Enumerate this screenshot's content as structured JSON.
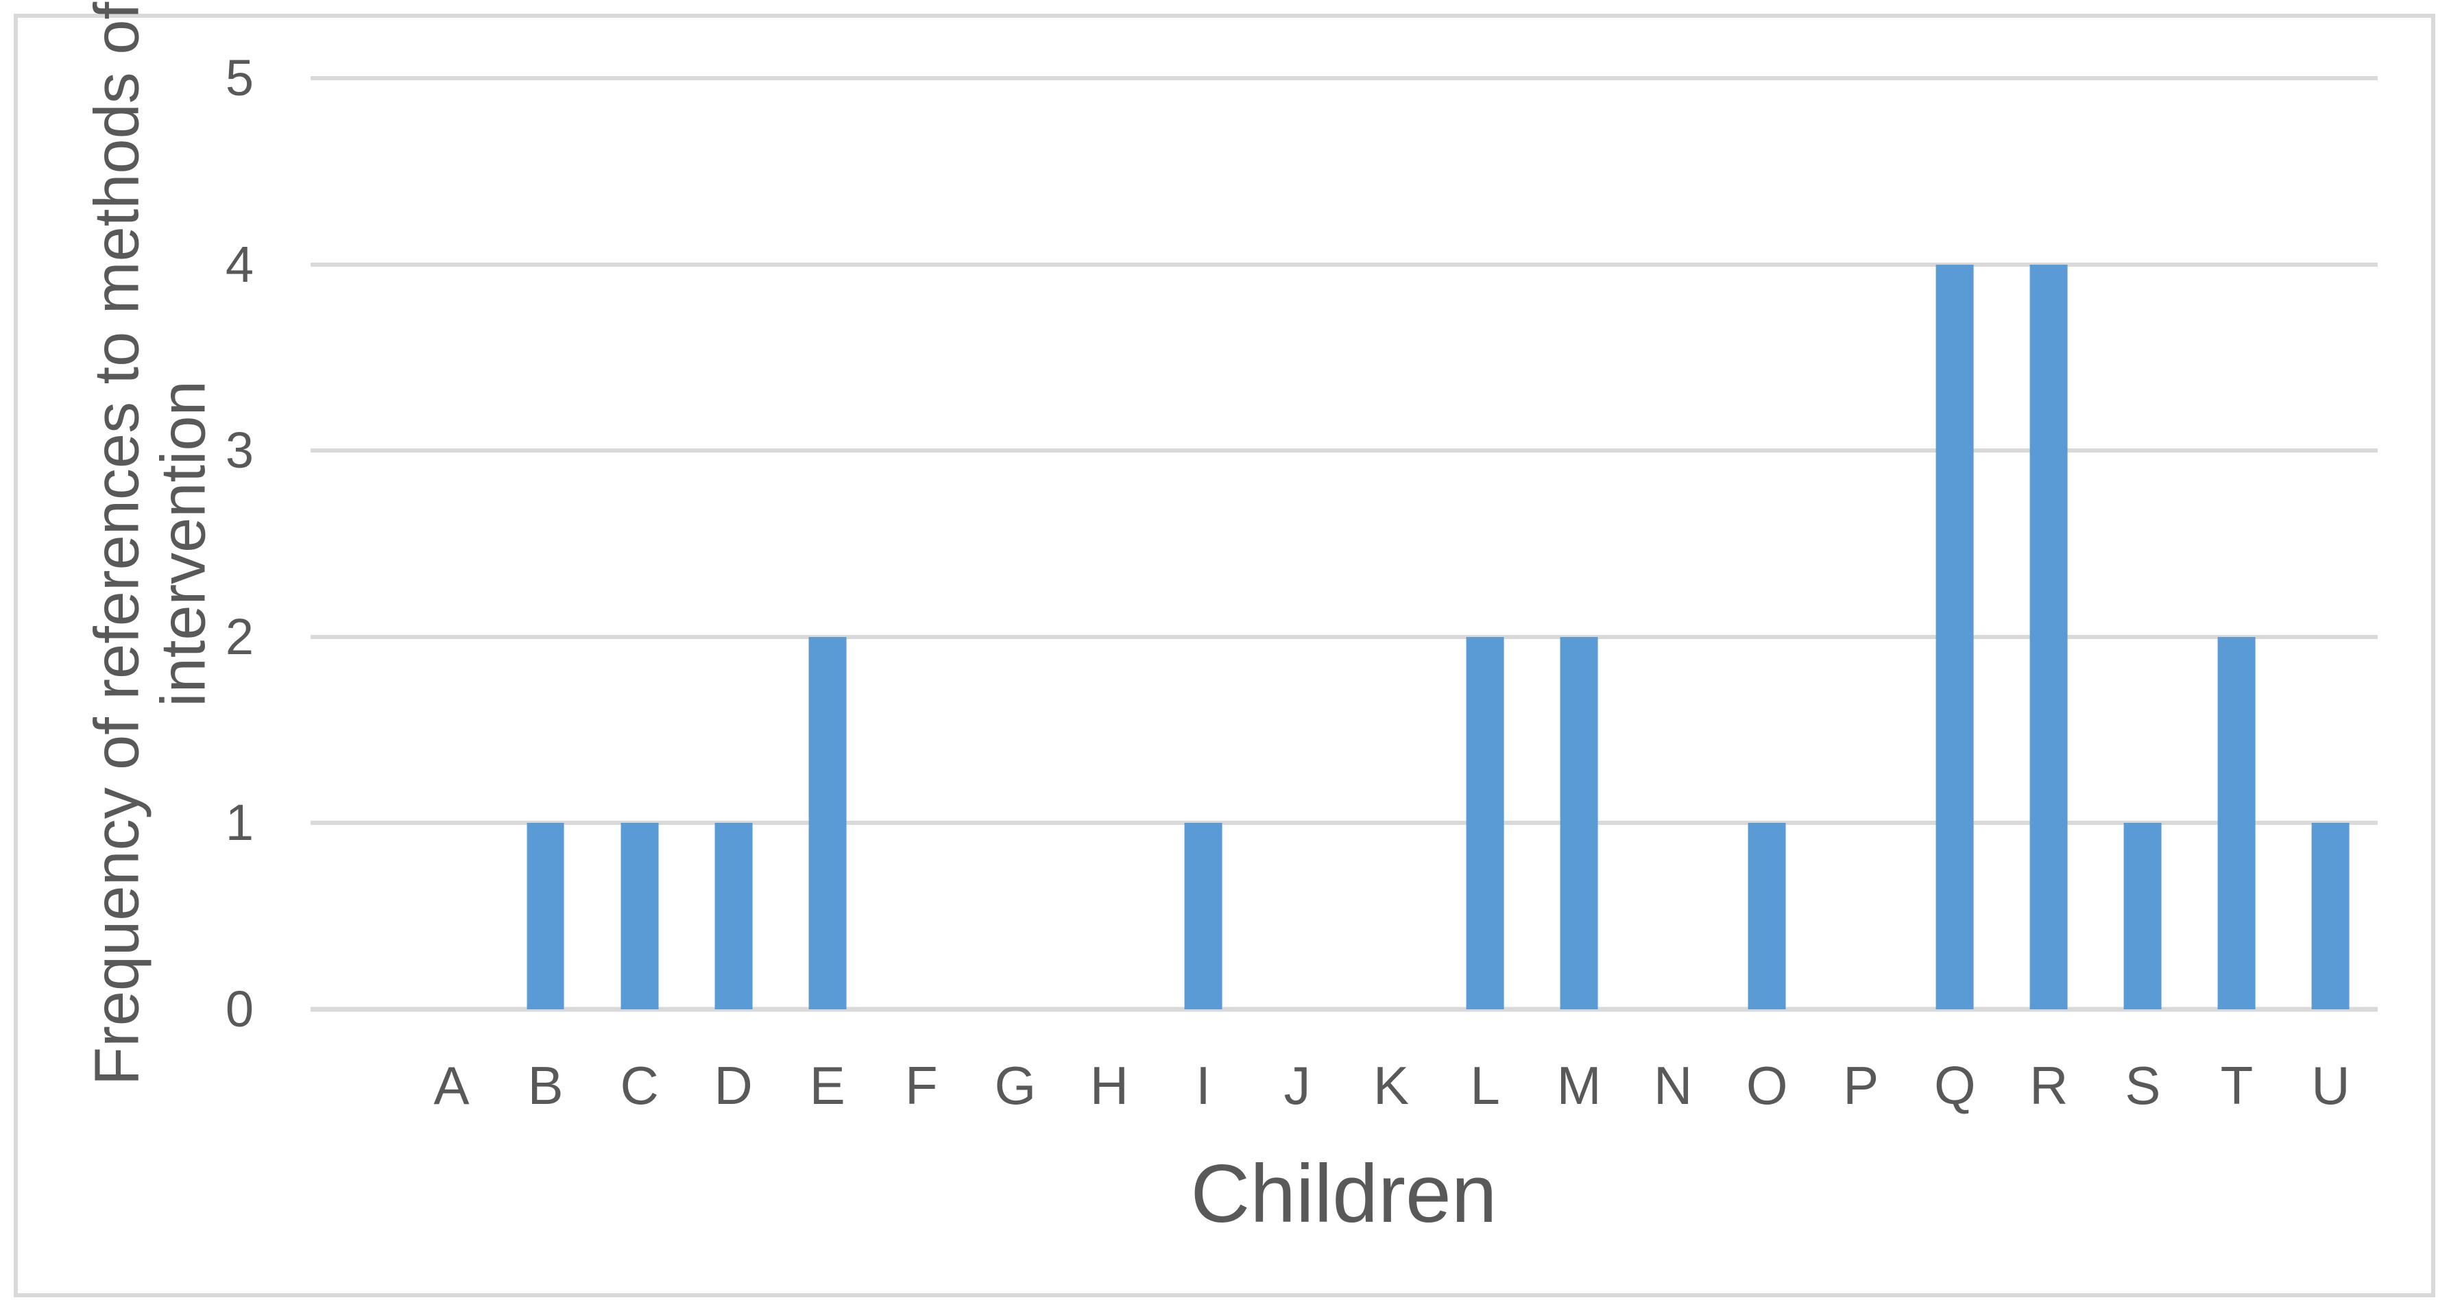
{
  "chart_data": {
    "type": "bar",
    "title": "",
    "xlabel": "Children",
    "ylabel": "Frequency of references to methods of intervention",
    "ylabel_lines": [
      "Frequency of references to methods of",
      "intervention"
    ],
    "categories": [
      "A",
      "B",
      "C",
      "D",
      "E",
      "F",
      "G",
      "H",
      "I",
      "J",
      "K",
      "L",
      "M",
      "N",
      "O",
      "P",
      "Q",
      "R",
      "S",
      "T",
      "U"
    ],
    "values": [
      0,
      1,
      1,
      1,
      2,
      0,
      0,
      0,
      1,
      0,
      0,
      2,
      2,
      0,
      1,
      0,
      4,
      4,
      1,
      2,
      1
    ],
    "ylim": [
      0,
      5
    ],
    "y_ticks": [
      0,
      1,
      2,
      3,
      4,
      5
    ],
    "grid": true,
    "legend": "none",
    "leading_empty_slots": 1,
    "colors": {
      "bar": "#5B9BD5",
      "gridline": "#D9D9D9",
      "axis_text": "#595959",
      "border": "#D9D9D9",
      "background": "#FFFFFF"
    }
  }
}
